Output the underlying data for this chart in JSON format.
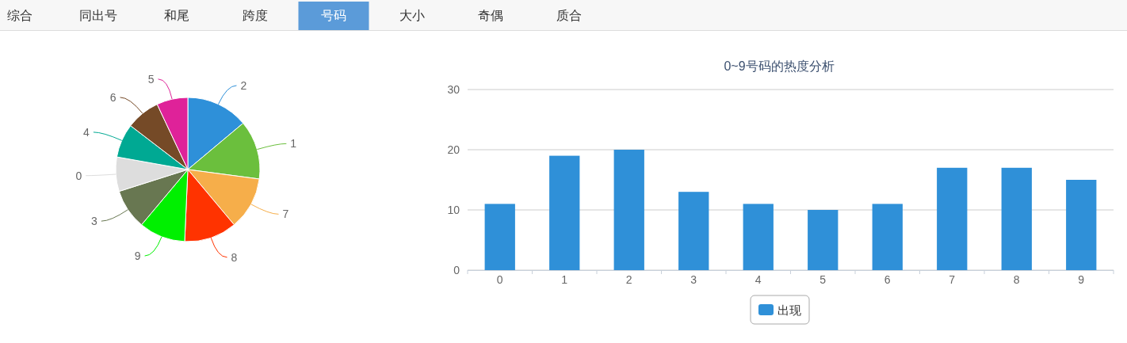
{
  "chart_data": [
    {
      "type": "other",
      "annotations": [
        "综合",
        "同出号",
        "和尾",
        "跨度",
        "号码",
        "大小",
        "奇偶",
        "质合"
      ],
      "colors": [
        "#f7f7f7",
        "#f7f7f7",
        "#f7f7f7",
        "#f7f7f7",
        "#5b9bd9",
        "#f7f7f7",
        "#f7f7f7",
        "#f7f7f7"
      ]
    },
    {
      "type": "pie",
      "categories": [
        "2",
        "1",
        "7",
        "8",
        "9",
        "3",
        "0",
        "4",
        "6",
        "5"
      ],
      "values": [
        13.9,
        13.2,
        11.8,
        11.8,
        10.4,
        9.0,
        7.7,
        7.6,
        7.6,
        7.0
      ],
      "colors": [
        "#2e90d9",
        "#6bbf3d",
        "#f6ae4a",
        "#ff3300",
        "#00f000",
        "#687751",
        "#dddddd",
        "#00a993",
        "#754a27",
        "#df2299"
      ]
    },
    {
      "type": "bar",
      "title": "0~9号码的热度分析",
      "categories": [
        "0",
        "1",
        "2",
        "3",
        "4",
        "5",
        "6",
        "7",
        "8",
        "9"
      ],
      "series": [
        {
          "name": "出现",
          "color": "#2f90d8",
          "values": [
            11,
            19,
            20,
            13,
            11,
            10,
            11,
            17,
            17,
            15
          ]
        }
      ],
      "ylim": [
        0,
        30
      ],
      "yticks": [
        0,
        10,
        20,
        30
      ],
      "grid": "y",
      "legend": "bottom"
    }
  ]
}
